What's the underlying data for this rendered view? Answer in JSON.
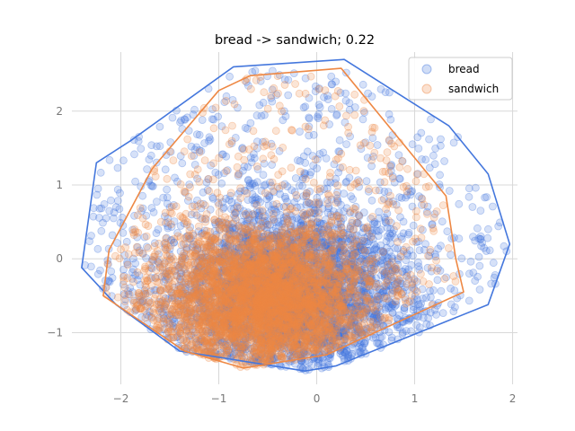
{
  "chart_data": {
    "type": "scatter",
    "title": "bread -> sandwich; 0.22",
    "xlabel": "",
    "ylabel": "",
    "xlim": [
      -2.5,
      2.05
    ],
    "ylim": [
      -1.7,
      2.8
    ],
    "xticks": [
      -2,
      -1,
      0,
      1,
      2
    ],
    "yticks": [
      -1,
      0,
      1,
      2
    ],
    "xtick_labels": [
      "−2",
      "−1",
      "0",
      "1",
      "2"
    ],
    "ytick_labels": [
      "−1",
      "0",
      "1",
      "2"
    ],
    "grid": true,
    "legend_position": "top-right",
    "series": [
      {
        "name": "bread",
        "color": "#4477dd",
        "marker": "circle",
        "alpha": 0.22,
        "point_count": 4000,
        "cluster_center": [
          -0.25,
          -0.45
        ],
        "cluster_spread": [
          0.62,
          0.62
        ],
        "hull": [
          [
            -2.4,
            -0.12
          ],
          [
            -2.25,
            1.3
          ],
          [
            -1.9,
            1.6
          ],
          [
            -0.85,
            2.6
          ],
          [
            0.28,
            2.7
          ],
          [
            1.35,
            1.8
          ],
          [
            1.75,
            1.15
          ],
          [
            1.97,
            0.2
          ],
          [
            1.75,
            -0.62
          ],
          [
            0.2,
            -1.45
          ],
          [
            -0.12,
            -1.52
          ],
          [
            -0.45,
            -1.45
          ],
          [
            -1.4,
            -1.25
          ],
          [
            -2.05,
            -0.62
          ]
        ]
      },
      {
        "name": "sandwich",
        "color": "#ee8844",
        "marker": "circle",
        "alpha": 0.22,
        "point_count": 3800,
        "cluster_center": [
          -0.55,
          -0.55
        ],
        "cluster_spread": [
          0.55,
          0.5
        ],
        "hull": [
          [
            -2.12,
            0.12
          ],
          [
            -2.18,
            -0.5
          ],
          [
            -1.35,
            -1.25
          ],
          [
            -0.75,
            -1.48
          ],
          [
            0.1,
            -1.3
          ],
          [
            1.5,
            -0.45
          ],
          [
            1.42,
            0.0
          ],
          [
            1.32,
            0.85
          ],
          [
            0.25,
            2.58
          ],
          [
            -0.68,
            2.48
          ],
          [
            -1.0,
            2.28
          ],
          [
            -1.68,
            1.22
          ]
        ]
      }
    ]
  }
}
